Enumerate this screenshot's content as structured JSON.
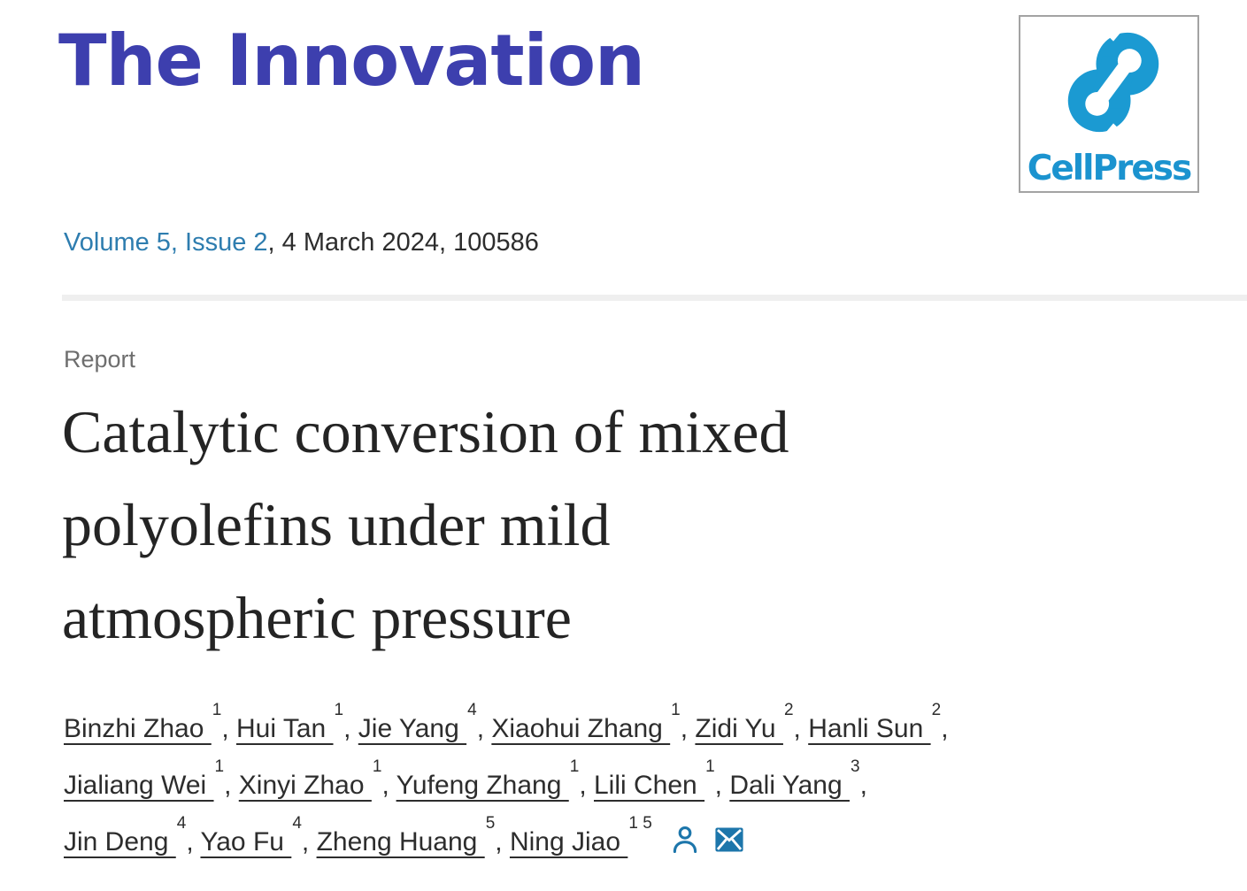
{
  "journal": {
    "title": "The Innovation",
    "publisher_logo_text": "CellPress"
  },
  "citation": {
    "issue_link": "Volume 5, Issue 2",
    "date_and_id": ", 4 March 2024, 100586"
  },
  "article": {
    "type_label": "Report",
    "title": "Catalytic conversion of mixed polyolefins under mild atmospheric pressure",
    "title_lines": [
      "Catalytic conversion of mixed",
      "polyolefins under mild",
      "atmospheric pressure"
    ]
  },
  "authors": {
    "separator": ", ",
    "lines": [
      [
        {
          "name": "Binzhi Zhao",
          "sup": "1"
        },
        {
          "name": "Hui Tan",
          "sup": "1"
        },
        {
          "name": "Jie Yang",
          "sup": "4"
        },
        {
          "name": "Xiaohui Zhang",
          "sup": "1"
        },
        {
          "name": "Zidi Yu",
          "sup": "2"
        },
        {
          "name": "Hanli Sun",
          "sup": "2"
        }
      ],
      [
        {
          "name": "Jialiang Wei",
          "sup": "1"
        },
        {
          "name": "Xinyi Zhao",
          "sup": "1"
        },
        {
          "name": "Yufeng Zhang",
          "sup": "1"
        },
        {
          "name": "Lili Chen",
          "sup": "1"
        },
        {
          "name": "Dali Yang",
          "sup": "3"
        }
      ],
      [
        {
          "name": "Jin Deng",
          "sup": "4"
        },
        {
          "name": "Yao Fu",
          "sup": "4"
        },
        {
          "name": "Zheng Huang",
          "sup": "5"
        },
        {
          "name": "Ning Jiao",
          "sup": "1 5"
        }
      ]
    ]
  },
  "icons": {
    "author_profile": "person-icon",
    "correspondence": "envelope-icon",
    "publisher_mark": "cellpress-mark-icon"
  },
  "colors": {
    "journal_title_purple": "#3d3fae",
    "issue_link_blue": "#2e7daf",
    "publisher_blue": "#1b93cf",
    "icon_blue": "#1d76ab",
    "body_text": "#2d2d2d",
    "label_gray": "#6e6e6e",
    "divider_gray": "#efefef"
  }
}
